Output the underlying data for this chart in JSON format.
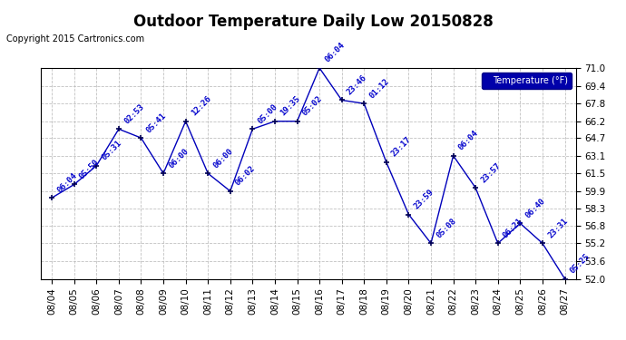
{
  "title": "Outdoor Temperature Daily Low 20150828",
  "copyright": "Copyright 2015 Cartronics.com",
  "legend_label": "Temperature (°F)",
  "dates": [
    "08/04",
    "08/05",
    "08/06",
    "08/07",
    "08/08",
    "08/09",
    "08/10",
    "08/11",
    "08/12",
    "08/13",
    "08/14",
    "08/15",
    "08/16",
    "08/17",
    "08/18",
    "08/19",
    "08/20",
    "08/21",
    "08/22",
    "08/23",
    "08/24",
    "08/25",
    "08/26",
    "08/27"
  ],
  "temperatures": [
    59.3,
    60.5,
    62.2,
    65.5,
    64.7,
    61.5,
    66.2,
    61.5,
    59.9,
    65.5,
    66.2,
    66.2,
    71.0,
    68.1,
    67.8,
    62.5,
    57.8,
    55.2,
    63.1,
    60.2,
    55.2,
    57.0,
    55.2,
    52.0
  ],
  "time_labels": [
    "06:04",
    "05:50",
    "05:31",
    "02:53",
    "05:41",
    "06:00",
    "12:26",
    "06:00",
    "06:02",
    "05:00",
    "19:35",
    "05:02",
    "06:04",
    "23:46",
    "01:12",
    "23:17",
    "23:59",
    "05:08",
    "06:04",
    "23:57",
    "06:21",
    "06:40",
    "23:31",
    "05:25"
  ],
  "ylim": [
    52.0,
    71.0
  ],
  "yticks": [
    52.0,
    53.6,
    55.2,
    56.8,
    58.3,
    59.9,
    61.5,
    63.1,
    64.7,
    66.2,
    67.8,
    69.4,
    71.0
  ],
  "line_color": "#0000bb",
  "marker_color": "#000055",
  "label_color": "#0000cc",
  "bg_color": "#ffffff",
  "grid_color": "#bbbbbb",
  "legend_bg": "#0000aa",
  "legend_text": "#ffffff",
  "title_fontsize": 12,
  "label_fontsize": 6.5,
  "tick_fontsize": 7.5,
  "copyright_fontsize": 7
}
